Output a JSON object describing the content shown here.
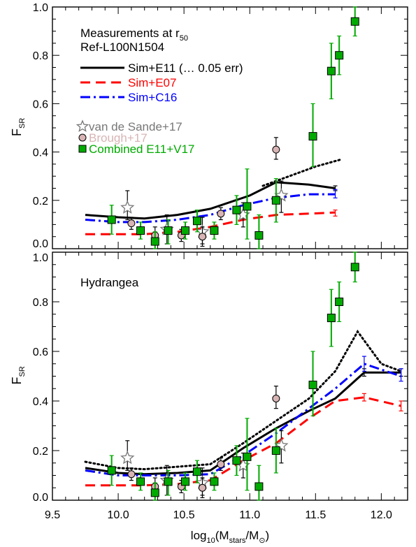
{
  "chart_data": [
    {
      "type": "line",
      "panel": "top",
      "annotations": [
        "Measurements at r",
        "50",
        "Ref-L100N1504"
      ],
      "xlabel": "",
      "ylabel": "F",
      "ylabel_sub": "SR",
      "xlim": [
        9.5,
        12.2
      ],
      "ylim": [
        0.0,
        1.0
      ],
      "yticks": [
        {
          "v": 0.0,
          "label": "0.0"
        },
        {
          "v": 0.2,
          "label": "0.2"
        },
        {
          "v": 0.4,
          "label": "0.4"
        },
        {
          "v": 0.6,
          "label": "0.6"
        },
        {
          "v": 0.8,
          "label": "0.8"
        },
        {
          "v": 1.0,
          "label": "1.0"
        }
      ],
      "legend": [
        {
          "label": "Sim+E11 (",
          "label_extra": " 0.05 err)",
          "color": "#000000",
          "style": "solid"
        },
        {
          "label": "Sim+E07",
          "color": "#ff0000",
          "style": "dashed"
        },
        {
          "label": "Sim+C16",
          "color": "#0000ff",
          "style": "dashdot"
        },
        {
          "label": "van de Sande+17",
          "color": "#777777",
          "marker": "star"
        },
        {
          "label": "Brough+17",
          "color": "#d8b4b4",
          "marker": "circle"
        },
        {
          "label": "Combined E11+V17",
          "color": "#00aa00",
          "marker": "square"
        }
      ],
      "series": [
        {
          "name": "Sim+E11",
          "color": "#000000",
          "style": "solid",
          "x": [
            9.75,
            10.0,
            10.2,
            10.45,
            10.7,
            11.0,
            11.2,
            11.45,
            11.65
          ],
          "y": [
            0.14,
            0.13,
            0.125,
            0.14,
            0.165,
            0.22,
            0.275,
            0.265,
            0.25
          ],
          "err_x": 11.65,
          "err_lo": 0.24,
          "err_hi": 0.26
        },
        {
          "color": "#000000",
          "style": "dotted",
          "x": [
            11.1,
            11.3,
            11.5,
            11.7
          ],
          "y": [
            0.26,
            0.3,
            0.34,
            0.37
          ]
        },
        {
          "name": "Sim+E07",
          "color": "#ff0000",
          "style": "dashed",
          "x": [
            9.75,
            10.0,
            10.2,
            10.45,
            10.7,
            10.95,
            11.2,
            11.45,
            11.65
          ],
          "y": [
            0.06,
            0.06,
            0.06,
            0.07,
            0.09,
            0.12,
            0.14,
            0.145,
            0.15
          ],
          "err_x": 11.65,
          "err_lo": 0.135,
          "err_hi": 0.16
        },
        {
          "name": "Sim+C16",
          "color": "#0000ff",
          "style": "dashdot",
          "x": [
            9.75,
            10.0,
            10.2,
            10.45,
            10.7,
            10.95,
            11.2,
            11.45,
            11.65
          ],
          "y": [
            0.12,
            0.11,
            0.11,
            0.12,
            0.14,
            0.18,
            0.21,
            0.225,
            0.225
          ],
          "err_x": 11.65,
          "err_lo": 0.21,
          "err_hi": 0.245
        }
      ],
      "observations": [
        {
          "name": "van de Sande+17",
          "marker": "star",
          "color": "#777777",
          "points": [
            [
              10.07,
              0.17,
              0.12,
              0.24
            ],
            [
              10.37,
              0.08,
              0.02,
              0.14
            ],
            [
              10.64,
              0.07,
              0.01,
              0.13
            ],
            [
              10.95,
              0.14,
              0.09,
              0.19
            ],
            [
              11.24,
              0.22,
              0.15,
              0.28
            ]
          ]
        },
        {
          "name": "Brough+17",
          "marker": "circle",
          "color": "#d8b4b4",
          "points": [
            [
              10.1,
              0.105,
              0.08,
              0.13
            ],
            [
              10.28,
              0.055,
              0.02,
              0.09
            ],
            [
              10.48,
              0.055,
              0.03,
              0.08
            ],
            [
              10.64,
              0.05,
              0.02,
              0.09
            ],
            [
              10.78,
              0.145,
              0.12,
              0.17
            ],
            [
              11.2,
              0.41,
              0.37,
              0.46
            ]
          ]
        },
        {
          "name": "Combined E11+V17",
          "marker": "square",
          "color": "#00aa00",
          "points": [
            [
              9.95,
              0.12,
              0.06,
              0.18
            ],
            [
              10.17,
              0.075,
              0.04,
              0.11
            ],
            [
              10.28,
              0.03,
              0.0,
              0.07
            ],
            [
              10.38,
              0.075,
              0.02,
              0.12
            ],
            [
              10.51,
              0.075,
              0.04,
              0.11
            ],
            [
              10.6,
              0.115,
              0.07,
              0.16
            ],
            [
              10.73,
              0.075,
              0.04,
              0.11
            ],
            [
              10.9,
              0.16,
              0.1,
              0.22
            ],
            [
              10.98,
              0.175,
              0.04,
              0.33
            ],
            [
              11.07,
              0.055,
              0.0,
              0.14
            ],
            [
              11.2,
              0.2,
              0.11,
              0.29
            ],
            [
              11.48,
              0.465,
              0.34,
              0.6
            ],
            [
              11.62,
              0.735,
              0.62,
              0.85
            ],
            [
              11.68,
              0.8,
              0.72,
              0.88
            ],
            [
              11.8,
              0.94,
              0.88,
              1.0
            ]
          ]
        }
      ]
    },
    {
      "type": "line",
      "panel": "bottom",
      "annotations": [
        "Hydrangea"
      ],
      "xlabel": "log",
      "xlabel_sub1": "10",
      "xlabel_mid": "(M",
      "xlabel_sub2": "stars",
      "xlabel_mid2": "/M",
      "xlabel_sub3": "⊙",
      "xlabel_end": ")",
      "ylabel": "F",
      "ylabel_sub": "SR",
      "xlim": [
        9.5,
        12.2
      ],
      "ylim": [
        0.0,
        1.0
      ],
      "xticks": [
        {
          "v": 9.5,
          "label": "9.5"
        },
        {
          "v": 10.0,
          "label": "10.0"
        },
        {
          "v": 10.5,
          "label": "10.5"
        },
        {
          "v": 11.0,
          "label": "11.0"
        },
        {
          "v": 11.5,
          "label": "11.5"
        },
        {
          "v": 12.0,
          "label": "12.0"
        }
      ],
      "yticks": [
        {
          "v": 0.0,
          "label": "0.0"
        },
        {
          "v": 0.2,
          "label": "0.2"
        },
        {
          "v": 0.4,
          "label": "0.4"
        },
        {
          "v": 0.6,
          "label": "0.6"
        },
        {
          "v": 0.8,
          "label": "0.8"
        },
        {
          "v": 1.0,
          "label": "1.0"
        }
      ],
      "series": [
        {
          "name": "Sim+E11",
          "color": "#000000",
          "style": "solid",
          "x": [
            9.75,
            10.0,
            10.2,
            10.45,
            10.7,
            10.95,
            11.2,
            11.45,
            11.65,
            11.87,
            12.15
          ],
          "y": [
            0.13,
            0.11,
            0.105,
            0.11,
            0.12,
            0.21,
            0.29,
            0.36,
            0.41,
            0.515,
            0.515
          ],
          "errs": [
            [
              11.87,
              0.5,
              0.53
            ],
            [
              12.15,
              0.5,
              0.53
            ]
          ]
        },
        {
          "color": "#000000",
          "style": "dotted",
          "x": [
            9.75,
            10.0,
            10.2,
            10.45,
            10.7,
            10.95,
            11.2,
            11.45,
            11.65,
            11.82,
            12.0,
            12.15
          ],
          "y": [
            0.155,
            0.13,
            0.125,
            0.135,
            0.145,
            0.23,
            0.32,
            0.41,
            0.52,
            0.68,
            0.55,
            0.52
          ]
        },
        {
          "name": "Sim+E07",
          "color": "#ff0000",
          "style": "dashed",
          "x": [
            9.75,
            10.0,
            10.2,
            10.45,
            10.7,
            10.95,
            11.2,
            11.45,
            11.65,
            11.87,
            12.15
          ],
          "y": [
            0.06,
            0.06,
            0.06,
            0.065,
            0.08,
            0.16,
            0.23,
            0.33,
            0.4,
            0.415,
            0.38
          ],
          "errs": [
            [
              11.87,
              0.4,
              0.43
            ],
            [
              12.15,
              0.36,
              0.4
            ]
          ]
        },
        {
          "name": "Sim+C16",
          "color": "#0000ff",
          "style": "dashdot",
          "x": [
            9.75,
            10.0,
            10.2,
            10.45,
            10.7,
            10.95,
            11.2,
            11.45,
            11.65,
            11.87,
            12.15
          ],
          "y": [
            0.12,
            0.1,
            0.1,
            0.1,
            0.105,
            0.18,
            0.27,
            0.37,
            0.45,
            0.55,
            0.5
          ],
          "errs": [
            [
              11.87,
              0.52,
              0.58
            ],
            [
              12.15,
              0.48,
              0.53
            ]
          ]
        }
      ],
      "observations": [
        {
          "name": "van de Sande+17",
          "marker": "star",
          "color": "#777777",
          "points": [
            [
              10.07,
              0.17,
              0.12,
              0.24
            ],
            [
              10.37,
              0.08,
              0.02,
              0.14
            ],
            [
              10.64,
              0.07,
              0.01,
              0.13
            ],
            [
              10.95,
              0.14,
              0.09,
              0.19
            ],
            [
              11.24,
              0.22,
              0.15,
              0.28
            ]
          ]
        },
        {
          "name": "Brough+17",
          "marker": "circle",
          "color": "#d8b4b4",
          "points": [
            [
              10.1,
              0.105,
              0.08,
              0.13
            ],
            [
              10.28,
              0.055,
              0.02,
              0.09
            ],
            [
              10.48,
              0.055,
              0.03,
              0.08
            ],
            [
              10.64,
              0.05,
              0.02,
              0.09
            ],
            [
              10.78,
              0.145,
              0.12,
              0.17
            ],
            [
              11.2,
              0.41,
              0.37,
              0.46
            ]
          ]
        },
        {
          "name": "Combined E11+V17",
          "marker": "square",
          "color": "#00aa00",
          "points": [
            [
              9.95,
              0.12,
              0.06,
              0.18
            ],
            [
              10.17,
              0.075,
              0.04,
              0.11
            ],
            [
              10.28,
              0.03,
              0.0,
              0.07
            ],
            [
              10.38,
              0.075,
              0.02,
              0.12
            ],
            [
              10.51,
              0.075,
              0.04,
              0.11
            ],
            [
              10.6,
              0.115,
              0.07,
              0.16
            ],
            [
              10.73,
              0.075,
              0.04,
              0.11
            ],
            [
              10.9,
              0.16,
              0.1,
              0.22
            ],
            [
              10.98,
              0.175,
              0.04,
              0.33
            ],
            [
              11.07,
              0.055,
              0.0,
              0.14
            ],
            [
              11.2,
              0.2,
              0.11,
              0.29
            ],
            [
              11.48,
              0.465,
              0.34,
              0.6
            ],
            [
              11.62,
              0.735,
              0.62,
              0.85
            ],
            [
              11.68,
              0.8,
              0.72,
              0.88
            ],
            [
              11.8,
              0.94,
              0.88,
              1.0
            ]
          ]
        }
      ]
    }
  ]
}
